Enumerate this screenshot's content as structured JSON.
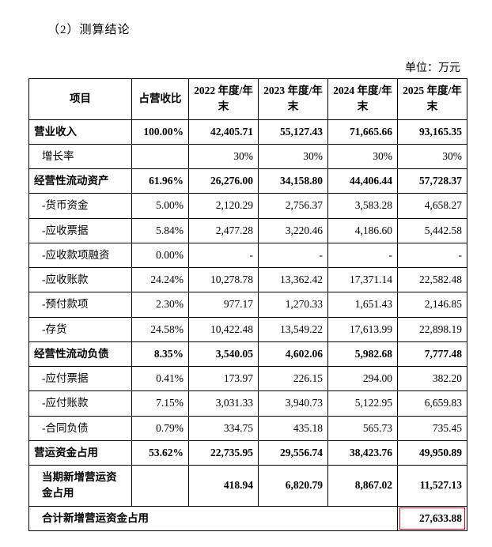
{
  "section_title": "（2）测算结论",
  "unit_label": "单位：万元",
  "table": {
    "headers": [
      "项目",
      "占营收比",
      "2022 年度/年末",
      "2023 年度/年末",
      "2024 年度/年末",
      "2025 年度/年末"
    ],
    "rows": [
      {
        "label": "营业收入",
        "pct": "100.00%",
        "v": [
          "42,405.71",
          "55,127.43",
          "71,665.66",
          "93,165.35"
        ],
        "bold": true,
        "sub": false
      },
      {
        "label": "增长率",
        "pct": "",
        "v": [
          "30%",
          "30%",
          "30%",
          "30%"
        ],
        "bold": false,
        "sub": true
      },
      {
        "label": "经营性流动资产",
        "pct": "61.96%",
        "v": [
          "26,276.00",
          "34,158.80",
          "44,406.44",
          "57,728.37"
        ],
        "bold": true,
        "sub": false
      },
      {
        "label": "-货币资金",
        "pct": "5.00%",
        "v": [
          "2,120.29",
          "2,756.37",
          "3,583.28",
          "4,658.27"
        ],
        "bold": false,
        "sub": true
      },
      {
        "label": "-应收票据",
        "pct": "5.84%",
        "v": [
          "2,477.28",
          "3,220.46",
          "4,186.60",
          "5,442.58"
        ],
        "bold": false,
        "sub": true
      },
      {
        "label": "-应收款项融资",
        "pct": "0.00%",
        "v": [
          "-",
          "-",
          "-",
          "-"
        ],
        "bold": false,
        "sub": true
      },
      {
        "label": "-应收账款",
        "pct": "24.24%",
        "v": [
          "10,278.78",
          "13,362.42",
          "17,371.14",
          "22,582.48"
        ],
        "bold": false,
        "sub": true
      },
      {
        "label": "-预付款项",
        "pct": "2.30%",
        "v": [
          "977.17",
          "1,270.33",
          "1,651.43",
          "2,146.85"
        ],
        "bold": false,
        "sub": true
      },
      {
        "label": "-存货",
        "pct": "24.58%",
        "v": [
          "10,422.48",
          "13,549.22",
          "17,613.99",
          "22,898.19"
        ],
        "bold": false,
        "sub": true
      },
      {
        "label": "经营性流动负债",
        "pct": "8.35%",
        "v": [
          "3,540.05",
          "4,602.06",
          "5,982.68",
          "7,777.48"
        ],
        "bold": true,
        "sub": false
      },
      {
        "label": "-应付票据",
        "pct": "0.41%",
        "v": [
          "173.97",
          "226.15",
          "294.00",
          "382.20"
        ],
        "bold": false,
        "sub": true
      },
      {
        "label": "-应付账款",
        "pct": "7.15%",
        "v": [
          "3,031.33",
          "3,940.73",
          "5,122.95",
          "6,659.83"
        ],
        "bold": false,
        "sub": true
      },
      {
        "label": "-合同负债",
        "pct": "0.79%",
        "v": [
          "334.75",
          "435.18",
          "565.73",
          "735.45"
        ],
        "bold": false,
        "sub": true
      },
      {
        "label": "营运资金占用",
        "pct": "53.62%",
        "v": [
          "22,735.95",
          "29,556.74",
          "38,423.76",
          "49,950.89"
        ],
        "bold": true,
        "sub": false
      },
      {
        "label": "当期新增营运资金占用",
        "pct": "",
        "v": [
          "418.94",
          "6,820.79",
          "8,867.02",
          "11,527.13"
        ],
        "bold": true,
        "sub": false,
        "indent": true
      },
      {
        "label": "合计新增营运资金占用",
        "span": true,
        "final": "27,633.88",
        "bold": true,
        "indent": true,
        "highlight": true
      }
    ]
  },
  "style": {
    "highlight_color": "#ff0000",
    "text_color": "#000000",
    "bg_color": "#ffffff",
    "border_color": "#000000"
  }
}
